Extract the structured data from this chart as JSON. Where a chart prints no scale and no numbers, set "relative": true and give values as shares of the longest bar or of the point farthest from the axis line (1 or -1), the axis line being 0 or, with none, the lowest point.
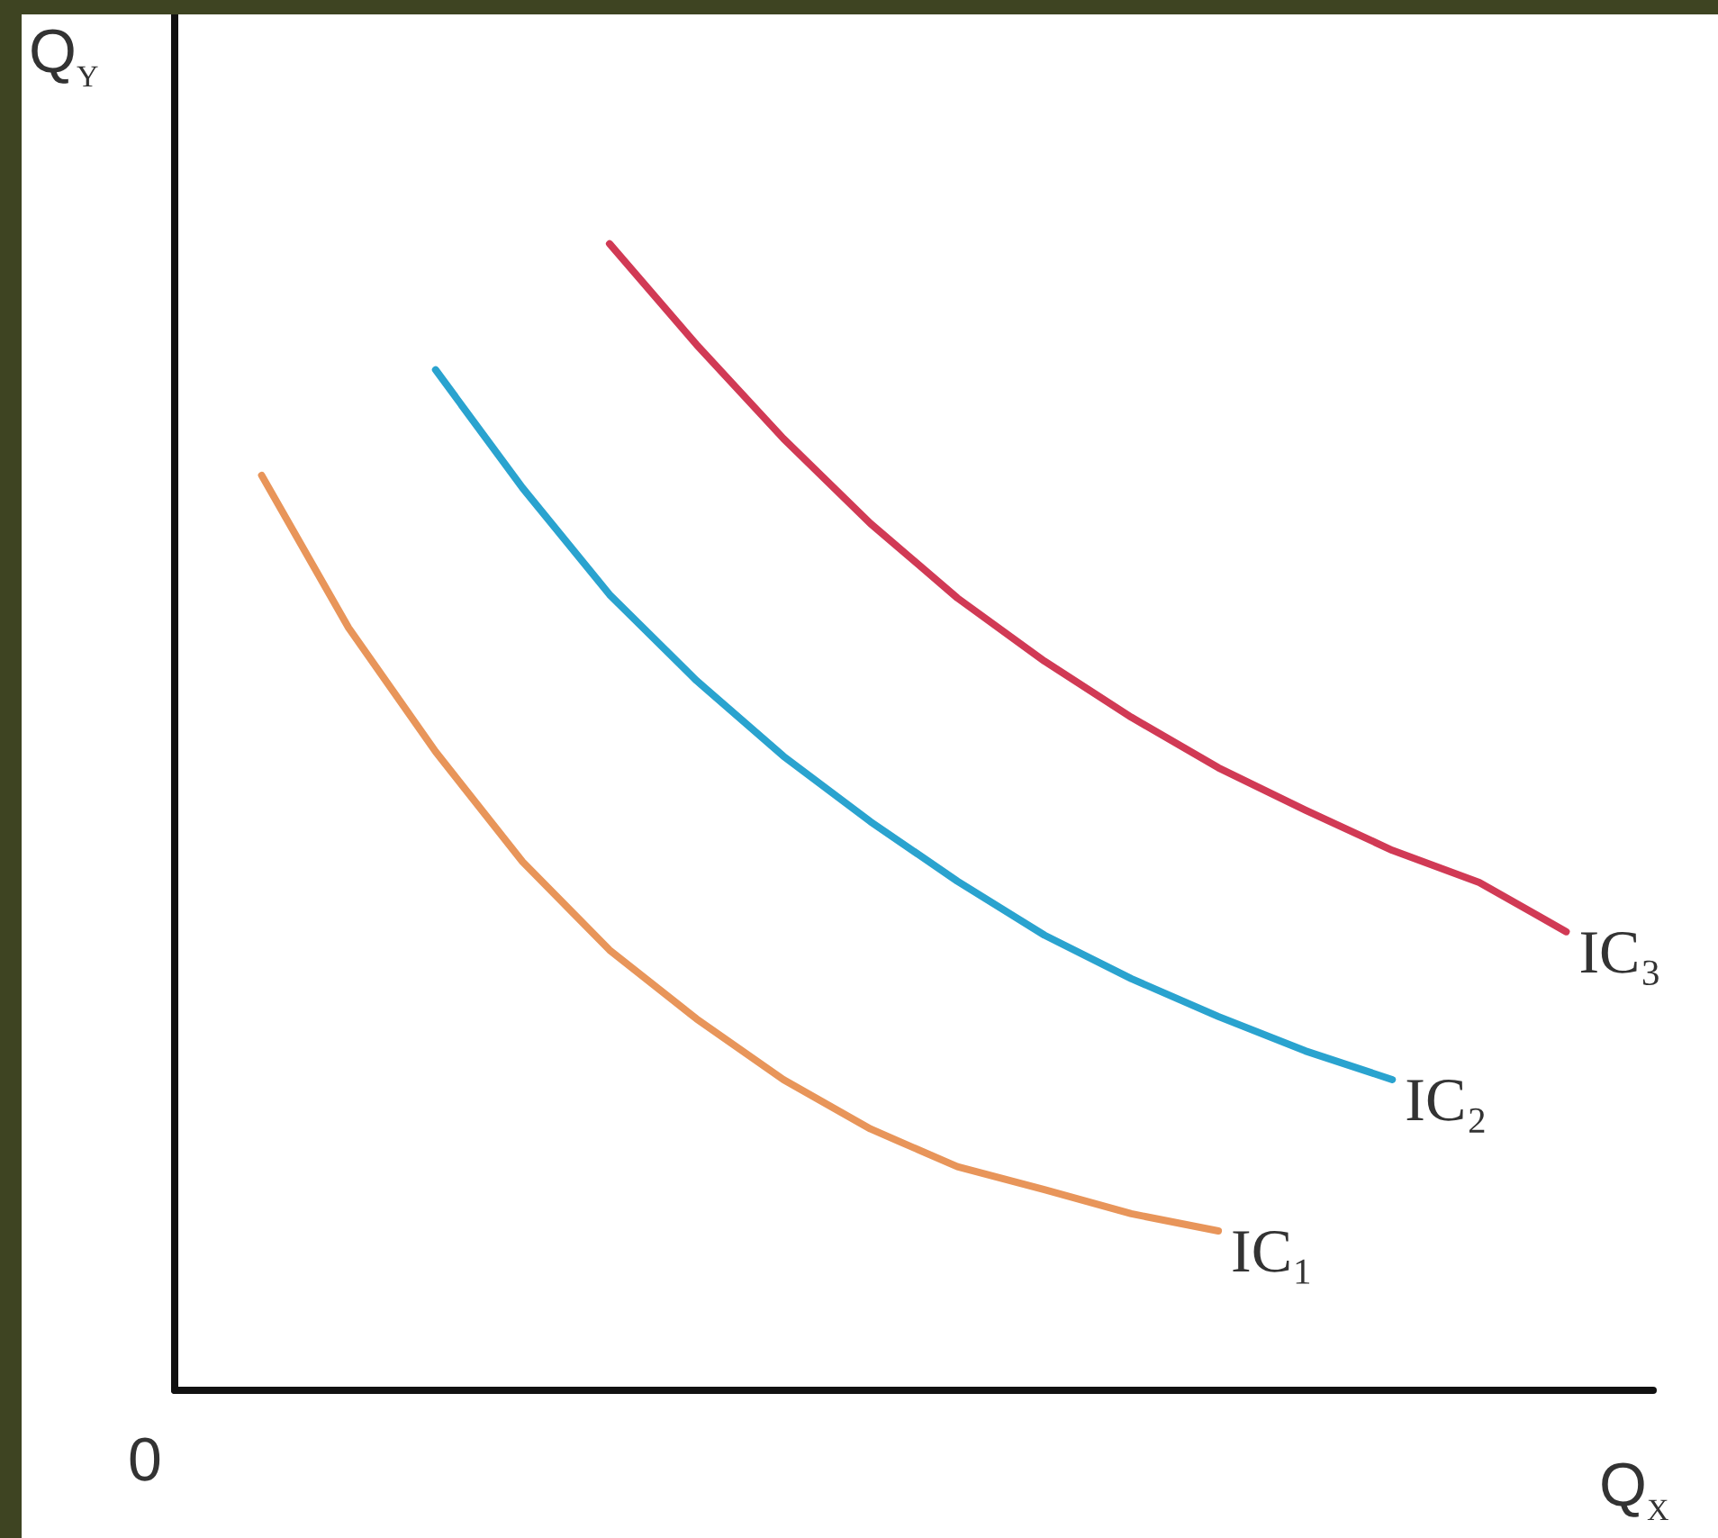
{
  "chart_data": {
    "type": "line",
    "relative": true,
    "xlabel": "Q$_{X}$",
    "ylabel": "Q$_{Y}$",
    "grid": false,
    "legend": false,
    "marker": "none",
    "line_style": "solid",
    "annotations": [
      "0"
    ],
    "categories": [
      null,
      null,
      null,
      null,
      null,
      null,
      null,
      null,
      null,
      null,
      null,
      null,
      null,
      null,
      null,
      null,
      null,
      null
    ],
    "series": [
      {
        "name": "IC₁",
        "color": "#e8955a",
        "values": [
          null,
          0.798,
          0.665,
          0.557,
          0.461,
          0.384,
          0.324,
          0.271,
          0.228,
          0.195,
          0.175,
          0.154,
          0.139,
          null,
          null,
          null,
          null,
          null
        ]
      },
      {
        "name": "IC₂",
        "color": "#2aa3cf",
        "values": [
          null,
          null,
          null,
          0.89,
          0.787,
          0.694,
          0.619,
          0.553,
          0.496,
          0.444,
          0.397,
          0.359,
          0.326,
          0.296,
          0.271,
          null,
          null,
          null
        ]
      },
      {
        "name": "IC₃",
        "color": "#d13a55",
        "values": [
          null,
          null,
          null,
          null,
          null,
          1,
          0.912,
          0.83,
          0.756,
          0.691,
          0.636,
          0.587,
          0.543,
          0.506,
          0.471,
          0.443,
          0.4,
          null
        ]
      }
    ]
  }
}
